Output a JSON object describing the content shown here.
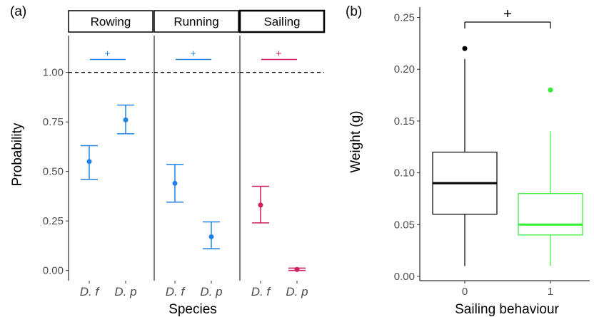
{
  "chart_data": [
    {
      "panel_label": "(a)",
      "type": "scatter",
      "subtype": "point estimates with error bars, faceted",
      "ylabel": "Probability",
      "xlabel": "Species",
      "yticks": [
        "0.00",
        "0.25",
        "0.50",
        "0.75",
        "1.00"
      ],
      "ylim": [
        -0.03,
        1.2
      ],
      "reference_line": {
        "y": 1.0,
        "style": "dashed"
      },
      "grid": false,
      "facets": [
        {
          "label": "Rowing",
          "color": "#2182e6",
          "categories": [
            "D. f",
            "D. p"
          ],
          "points": [
            {
              "category": "D. f",
              "value": 0.55,
              "lower": 0.46,
              "upper": 0.63
            },
            {
              "category": "D. p",
              "value": 0.76,
              "lower": 0.69,
              "upper": 0.835
            }
          ],
          "significance": "+"
        },
        {
          "label": "Running",
          "color": "#2182e6",
          "categories": [
            "D. f",
            "D. p"
          ],
          "points": [
            {
              "category": "D. f",
              "value": 0.44,
              "lower": 0.345,
              "upper": 0.535
            },
            {
              "category": "D. p",
              "value": 0.17,
              "lower": 0.11,
              "upper": 0.245
            }
          ],
          "significance": "+"
        },
        {
          "label": "Sailing",
          "color": "#cc1e5e",
          "categories": [
            "D. f",
            "D. p"
          ],
          "points": [
            {
              "category": "D. f",
              "value": 0.33,
              "lower": 0.24,
              "upper": 0.425
            },
            {
              "category": "D. p",
              "value": 0.005,
              "lower": 0.0,
              "upper": 0.012
            }
          ],
          "significance": "+"
        }
      ]
    },
    {
      "panel_label": "(b)",
      "type": "boxplot",
      "ylabel": "Weight (g)",
      "xlabel": "Sailing behaviour",
      "categories": [
        "0",
        "1"
      ],
      "yticks": [
        "0.00",
        "0.05",
        "0.10",
        "0.15",
        "0.20",
        "0.25"
      ],
      "ylim": [
        0,
        0.26
      ],
      "grid": false,
      "boxes": [
        {
          "category": "0",
          "color": "#000000",
          "min": 0.01,
          "q1": 0.06,
          "median": 0.09,
          "q3": 0.12,
          "max": 0.21,
          "outliers": [
            0.22
          ]
        },
        {
          "category": "1",
          "color": "#33ee33",
          "min": 0.01,
          "q1": 0.04,
          "median": 0.05,
          "q3": 0.08,
          "max": 0.14,
          "outliers": [
            0.18
          ]
        }
      ],
      "significance": "+"
    }
  ]
}
